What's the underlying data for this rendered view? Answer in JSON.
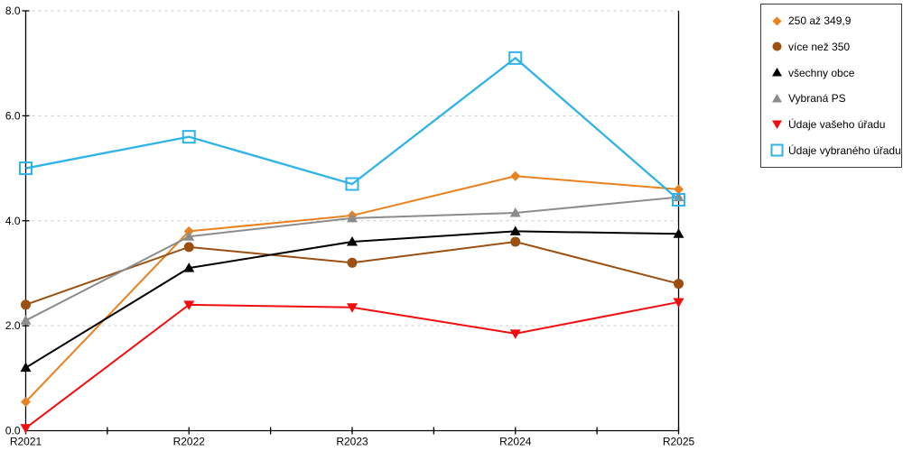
{
  "chart_data": {
    "type": "line",
    "categories": [
      "R2021",
      "R2022",
      "R2023",
      "R2024",
      "R2025"
    ],
    "series": [
      {
        "name": "250 až 349,9",
        "marker": "diamond",
        "color": "#E8821E",
        "values": [
          0.55,
          3.8,
          4.1,
          4.85,
          4.6
        ]
      },
      {
        "name": "více než 350",
        "marker": "circle",
        "color": "#9B4F10",
        "values": [
          2.4,
          3.5,
          3.2,
          3.6,
          2.8
        ]
      },
      {
        "name": "všechny obce",
        "marker": "triangle-up",
        "color": "#000000",
        "values": [
          1.2,
          3.1,
          3.6,
          3.8,
          3.75
        ]
      },
      {
        "name": "Vybraná PS",
        "marker": "triangle-up",
        "color": "#8C8C8C",
        "values": [
          2.1,
          3.7,
          4.05,
          4.15,
          4.45
        ]
      },
      {
        "name": "Údaje vašeho úřadu",
        "marker": "triangle-down",
        "color": "#F20D0D",
        "values": [
          0.05,
          2.4,
          2.35,
          1.85,
          2.45
        ]
      },
      {
        "name": "Údaje vybraného úřadu",
        "marker": "square-open",
        "color": "#2FB3E8",
        "values": [
          5.0,
          5.6,
          4.7,
          7.1,
          4.4
        ]
      }
    ],
    "ylim": [
      0,
      8
    ],
    "yticks": [
      0,
      2,
      4,
      6,
      8
    ],
    "ytick_labels": [
      "0.0",
      "2.0",
      "4.0",
      "6.0",
      "8.0"
    ],
    "xlabel": "",
    "ylabel": "",
    "title": "",
    "grid": "horizontal-dashed",
    "grid_color": "#c9c9c9",
    "axis_color": "#000000",
    "legend_position": "outside-top-right"
  }
}
